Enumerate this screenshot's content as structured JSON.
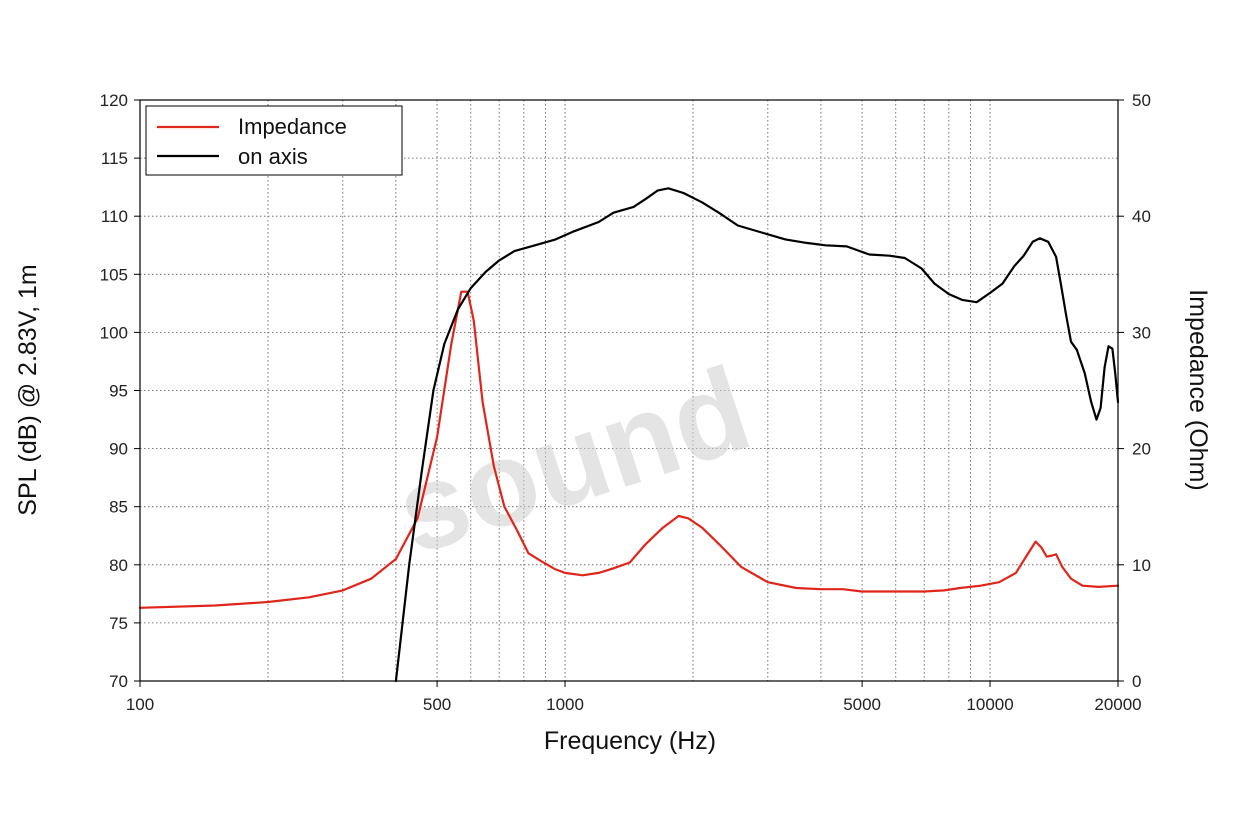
{
  "chart_data": {
    "type": "line",
    "xlabel": "Frequency (Hz)",
    "ylabel_left": "SPL (dB) @ 2.83V, 1m",
    "ylabel_right": "Impedance (Ohm)",
    "x_scale": "log",
    "xlim": [
      100,
      20000
    ],
    "ylim_left": [
      70,
      120
    ],
    "ylim_right": [
      0,
      50
    ],
    "x_tick_labels": [
      "100",
      "500",
      "1000",
      "5000",
      "10000",
      "20000"
    ],
    "y_left_tick_labels": [
      "70",
      "75",
      "80",
      "85",
      "90",
      "95",
      "100",
      "105",
      "110",
      "115",
      "120"
    ],
    "y_right_tick_labels": [
      "0",
      "10",
      "20",
      "30",
      "40",
      "50"
    ],
    "grid": true,
    "legend_position": "top-left",
    "watermark": "sound",
    "series": [
      {
        "name": "Impedance",
        "axis": "right",
        "color": "#e0251b",
        "points": [
          [
            100,
            6.3
          ],
          [
            150,
            6.5
          ],
          [
            200,
            6.8
          ],
          [
            250,
            7.2
          ],
          [
            300,
            7.8
          ],
          [
            350,
            8.8
          ],
          [
            400,
            10.5
          ],
          [
            450,
            14.0
          ],
          [
            500,
            21.0
          ],
          [
            540,
            29.0
          ],
          [
            570,
            33.5
          ],
          [
            590,
            33.5
          ],
          [
            610,
            31.0
          ],
          [
            640,
            24.0
          ],
          [
            680,
            18.5
          ],
          [
            720,
            15.0
          ],
          [
            770,
            13.0
          ],
          [
            820,
            11.0
          ],
          [
            880,
            10.3
          ],
          [
            950,
            9.6
          ],
          [
            1000,
            9.3
          ],
          [
            1100,
            9.1
          ],
          [
            1200,
            9.3
          ],
          [
            1300,
            9.7
          ],
          [
            1420,
            10.2
          ],
          [
            1550,
            11.8
          ],
          [
            1700,
            13.2
          ],
          [
            1850,
            14.2
          ],
          [
            1950,
            14.0
          ],
          [
            2100,
            13.2
          ],
          [
            2300,
            11.8
          ],
          [
            2600,
            9.8
          ],
          [
            3000,
            8.5
          ],
          [
            3500,
            8.0
          ],
          [
            4000,
            7.9
          ],
          [
            4500,
            7.9
          ],
          [
            5000,
            7.7
          ],
          [
            6000,
            7.7
          ],
          [
            7000,
            7.7
          ],
          [
            7800,
            7.8
          ],
          [
            8500,
            8.0
          ],
          [
            9500,
            8.2
          ],
          [
            10500,
            8.5
          ],
          [
            11500,
            9.3
          ],
          [
            12200,
            10.8
          ],
          [
            12800,
            12.0
          ],
          [
            13200,
            11.5
          ],
          [
            13600,
            10.7
          ],
          [
            14000,
            10.8
          ],
          [
            14300,
            10.9
          ],
          [
            14800,
            9.8
          ],
          [
            15500,
            8.8
          ],
          [
            16500,
            8.2
          ],
          [
            18000,
            8.1
          ],
          [
            20000,
            8.2
          ]
        ]
      },
      {
        "name": "on axis",
        "axis": "left",
        "color": "#000000",
        "points": [
          [
            400,
            70
          ],
          [
            430,
            80
          ],
          [
            460,
            88
          ],
          [
            490,
            95
          ],
          [
            520,
            99
          ],
          [
            560,
            102
          ],
          [
            600,
            103.8
          ],
          [
            650,
            105.2
          ],
          [
            700,
            106.2
          ],
          [
            760,
            107.0
          ],
          [
            850,
            107.5
          ],
          [
            950,
            108.0
          ],
          [
            1050,
            108.7
          ],
          [
            1200,
            109.5
          ],
          [
            1300,
            110.3
          ],
          [
            1450,
            110.8
          ],
          [
            1550,
            111.5
          ],
          [
            1650,
            112.2
          ],
          [
            1750,
            112.4
          ],
          [
            1900,
            112.0
          ],
          [
            2100,
            111.2
          ],
          [
            2300,
            110.3
          ],
          [
            2550,
            109.2
          ],
          [
            2900,
            108.6
          ],
          [
            3300,
            108.0
          ],
          [
            3700,
            107.7
          ],
          [
            4100,
            107.5
          ],
          [
            4600,
            107.4
          ],
          [
            5200,
            106.7
          ],
          [
            5800,
            106.6
          ],
          [
            6300,
            106.4
          ],
          [
            6900,
            105.5
          ],
          [
            7400,
            104.2
          ],
          [
            8000,
            103.3
          ],
          [
            8600,
            102.8
          ],
          [
            9300,
            102.6
          ],
          [
            10000,
            103.4
          ],
          [
            10700,
            104.2
          ],
          [
            11400,
            105.7
          ],
          [
            12000,
            106.6
          ],
          [
            12600,
            107.8
          ],
          [
            13100,
            108.1
          ],
          [
            13700,
            107.8
          ],
          [
            14300,
            106.5
          ],
          [
            14700,
            104.0
          ],
          [
            15100,
            101.5
          ],
          [
            15500,
            99.2
          ],
          [
            16000,
            98.5
          ],
          [
            16700,
            96.5
          ],
          [
            17300,
            94.0
          ],
          [
            17800,
            92.5
          ],
          [
            18200,
            93.5
          ],
          [
            18600,
            97.0
          ],
          [
            19000,
            98.8
          ],
          [
            19400,
            98.6
          ],
          [
            19700,
            96.5
          ],
          [
            20000,
            94.0
          ]
        ]
      }
    ]
  }
}
